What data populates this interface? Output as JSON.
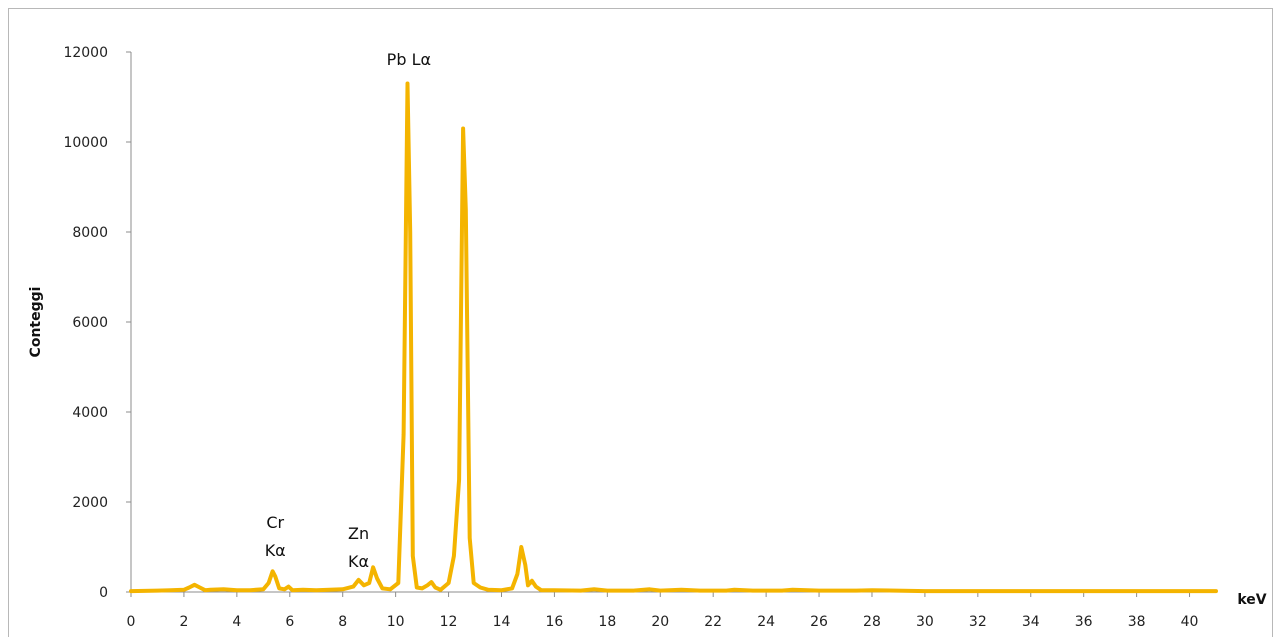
{
  "chart_data": {
    "type": "line",
    "title": "",
    "xlabel": "keV",
    "ylabel": "Conteggi",
    "xlim": [
      0,
      41
    ],
    "ylim": [
      0,
      12000
    ],
    "x_ticks": [
      0,
      2,
      4,
      6,
      8,
      10,
      12,
      14,
      16,
      18,
      20,
      22,
      24,
      26,
      28,
      30,
      32,
      34,
      36,
      38,
      40
    ],
    "y_ticks": [
      0,
      2000,
      4000,
      6000,
      8000,
      10000,
      12000
    ],
    "grid": false,
    "legend": "none",
    "line_color": "#F4B400",
    "series": [
      {
        "x": [
          0,
          1.0,
          1.5,
          2.0,
          2.2,
          2.4,
          2.6,
          2.8,
          3.0,
          3.5,
          4.0,
          4.5,
          5.0,
          5.2,
          5.35,
          5.45,
          5.6,
          5.8,
          5.95,
          6.1,
          6.5,
          7.0,
          7.5,
          8.0,
          8.4,
          8.6,
          8.8,
          9.0,
          9.15,
          9.3,
          9.5,
          9.8,
          10.1,
          10.3,
          10.45,
          10.55,
          10.65,
          10.8,
          11.0,
          11.2,
          11.35,
          11.5,
          11.7,
          12.0,
          12.2,
          12.4,
          12.55,
          12.65,
          12.8,
          12.95,
          13.2,
          13.5,
          14.0,
          14.4,
          14.6,
          14.75,
          14.9,
          15.0,
          15.15,
          15.3,
          15.5,
          16.0,
          17.0,
          17.5,
          18.0,
          19.0,
          19.6,
          20.0,
          20.8,
          21.5,
          22.5,
          22.8,
          23.5,
          24.6,
          25.0,
          26.0,
          27.4,
          28.0,
          30.0,
          33.0,
          36.0,
          39.0,
          41.0
        ],
        "y": [
          20,
          30,
          40,
          50,
          100,
          160,
          100,
          40,
          50,
          60,
          40,
          40,
          60,
          200,
          460,
          350,
          80,
          60,
          120,
          40,
          50,
          40,
          50,
          60,
          120,
          270,
          150,
          200,
          550,
          300,
          80,
          60,
          200,
          3500,
          11300,
          8000,
          800,
          100,
          80,
          150,
          220,
          100,
          50,
          200,
          800,
          2500,
          10300,
          8500,
          1200,
          200,
          100,
          50,
          40,
          80,
          400,
          1000,
          600,
          150,
          250,
          120,
          40,
          40,
          30,
          60,
          30,
          30,
          60,
          30,
          50,
          30,
          30,
          50,
          30,
          30,
          50,
          30,
          30,
          40,
          20,
          20,
          20,
          20,
          20
        ]
      }
    ],
    "annotations": [
      {
        "lines": [
          "Cr",
          "Kα"
        ],
        "x": 5.45
      },
      {
        "lines": [
          "Zn",
          "Kα"
        ],
        "x": 8.6
      },
      {
        "lines": [
          "Pb Lα"
        ],
        "x": 10.5
      }
    ]
  }
}
